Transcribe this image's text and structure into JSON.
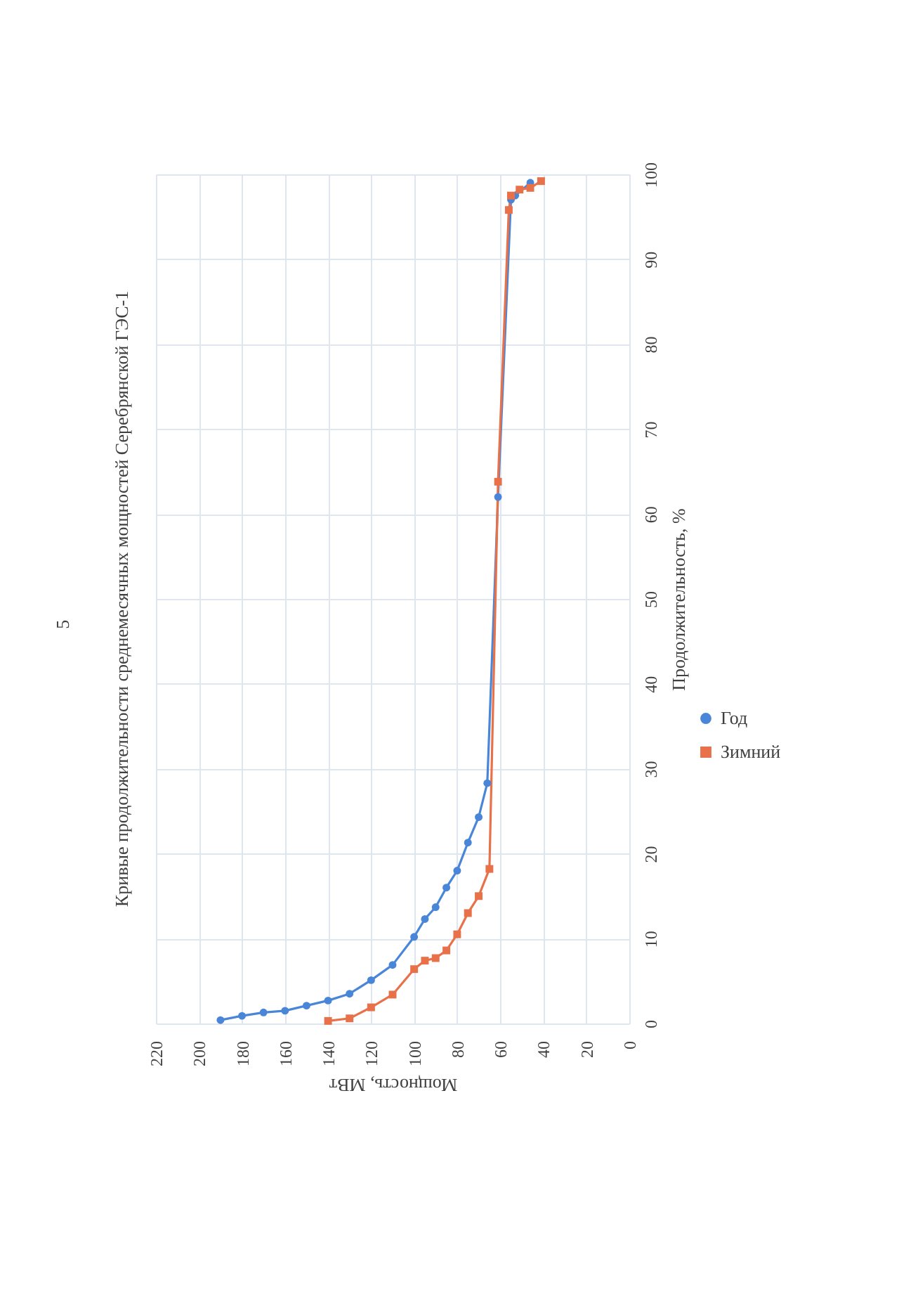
{
  "chart_data": {
    "type": "line",
    "title": "Кривые продолжительности среднемесячных мощностей Серебрянской ГЭС-1",
    "xlabel": "Мощность, МВт",
    "ylabel": "Продолжительность, %",
    "annotations": [
      "5"
    ],
    "xlim": [
      220,
      0
    ],
    "xticks": [
      220,
      200,
      180,
      160,
      140,
      120,
      100,
      80,
      60,
      40,
      20,
      0
    ],
    "ylim": [
      0,
      100
    ],
    "yticks": [
      0,
      10,
      20,
      30,
      40,
      50,
      60,
      70,
      80,
      90,
      100
    ],
    "grid": true,
    "legend": "right",
    "line_style": "solid",
    "series": [
      {
        "name": "Год",
        "color": "#4a86d8",
        "marker": "circle",
        "x": [
          190,
          180,
          170,
          160,
          150,
          140,
          130,
          120,
          110,
          100,
          95,
          90,
          85,
          80,
          75,
          70,
          66,
          61,
          55,
          53,
          46
        ],
        "values": [
          0.4,
          0.9,
          1.3,
          1.5,
          2.1,
          2.7,
          3.5,
          5.1,
          6.9,
          10.2,
          12.3,
          13.7,
          16.0,
          18.0,
          21.3,
          24.3,
          28.3,
          62.0,
          97.0,
          97.5,
          99.0
        ]
      },
      {
        "name": "Зимний",
        "color": "#e8714a",
        "marker": "square",
        "x": [
          140,
          130,
          120,
          110,
          100,
          95,
          90,
          85,
          80,
          75,
          70,
          65,
          61,
          56,
          55,
          51,
          46,
          41
        ],
        "values": [
          0.3,
          0.6,
          1.9,
          3.4,
          6.4,
          7.4,
          7.7,
          8.6,
          10.5,
          13.0,
          15.0,
          18.2,
          63.8,
          95.8,
          97.5,
          98.2,
          98.4,
          99.2
        ]
      }
    ]
  }
}
